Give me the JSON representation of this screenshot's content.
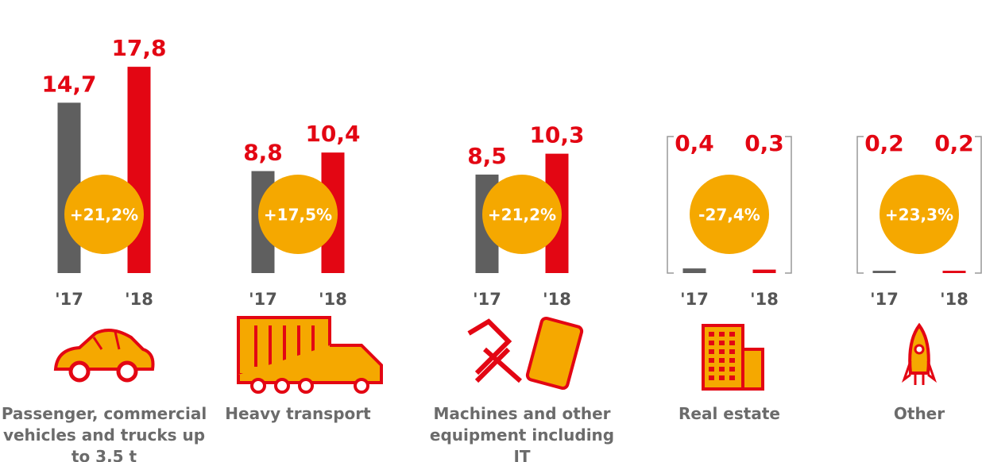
{
  "chart_data": {
    "type": "bar",
    "categories": [
      "Passenger, commercial vehicles and trucks up to 3,5 t",
      "Heavy transport",
      "Machines and other equipment including IT",
      "Real estate",
      "Other"
    ],
    "series": [
      {
        "name": "'17",
        "color": "#5f5f5f",
        "values": [
          14.7,
          8.8,
          8.5,
          0.4,
          0.2
        ],
        "value_labels": [
          "14,7",
          "8,8",
          "8,5",
          "0,4",
          "0,2"
        ]
      },
      {
        "name": "'18",
        "color": "#e30613",
        "values": [
          17.8,
          10.4,
          10.3,
          0.3,
          0.2
        ],
        "value_labels": [
          "17,8",
          "10,4",
          "10,3",
          "0,3",
          "0,2"
        ]
      }
    ],
    "changes": [
      21.2,
      17.5,
      21.2,
      -27.4,
      23.3
    ],
    "change_labels": [
      "+21,2%",
      "+17,5%",
      "+21,2%",
      "-27,4%",
      "+23,3%"
    ],
    "change_color": "#f5a800"
  }
}
